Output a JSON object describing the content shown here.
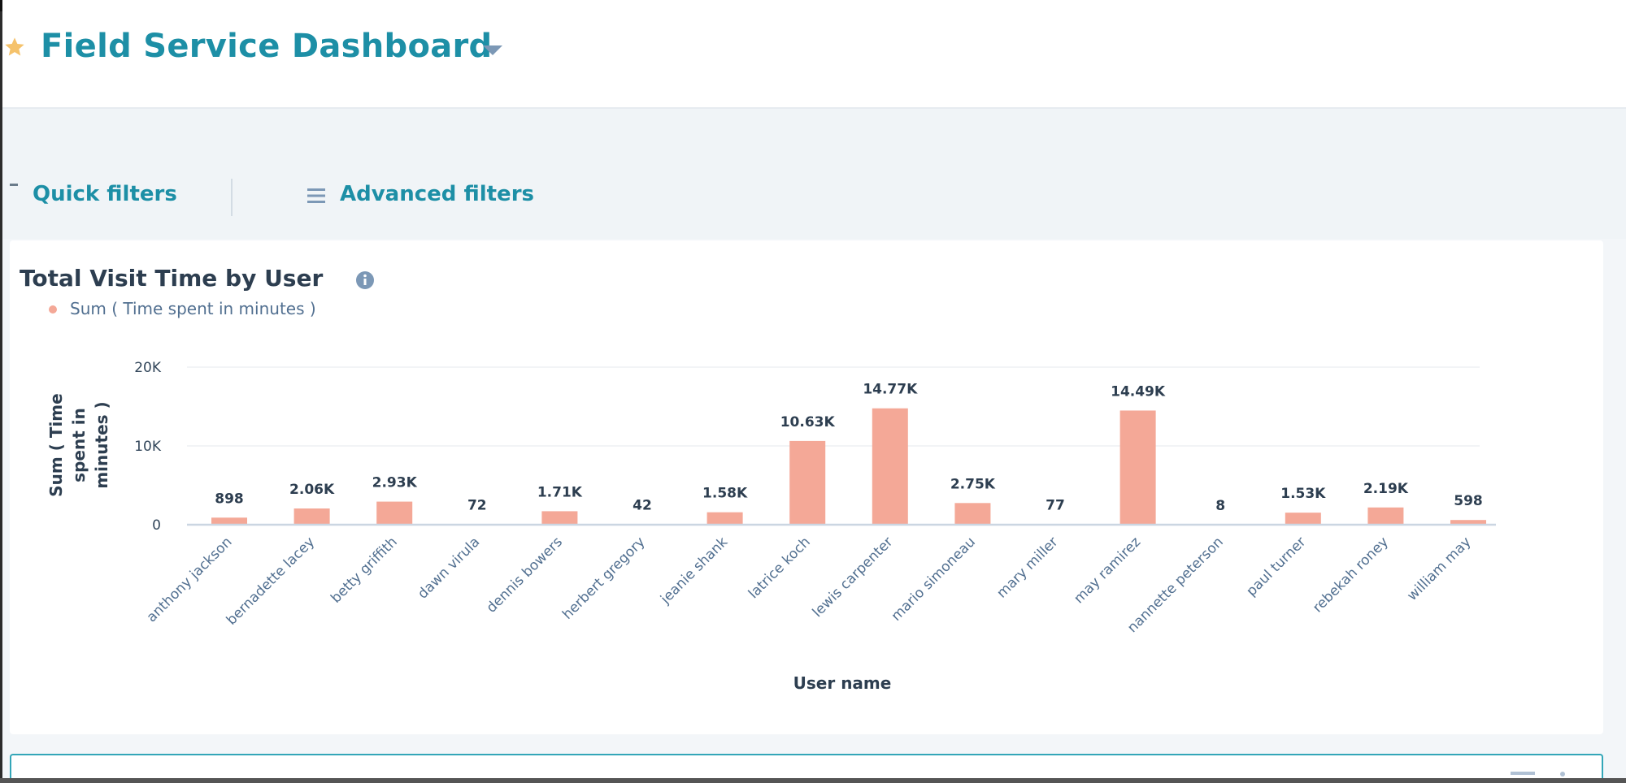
{
  "header": {
    "title": "Field Service Dashboard"
  },
  "filters": {
    "quick_label": "Quick filters",
    "advanced_label": "Advanced filters"
  },
  "report": {
    "title": "Total Visit Time by User",
    "legend_label": "Sum ( Time spent in minutes )"
  },
  "colors": {
    "accent": "#1d8fa6",
    "bar": "#f4a897",
    "star": "#f5c26b"
  },
  "icons": [
    "star-icon",
    "caret-down-icon",
    "filter-lines-icon",
    "info-icon"
  ],
  "chart_data": {
    "type": "bar",
    "categories": [
      "anthony jackson",
      "bernadette lacey",
      "betty griffith",
      "dawn virula",
      "dennis bowers",
      "herbert gregory",
      "jeanie shank",
      "latrice koch",
      "lewis carpenter",
      "mario simoneau",
      "mary miller",
      "may ramirez",
      "nannette peterson",
      "paul turner",
      "rebekah roney",
      "william may"
    ],
    "series": [
      {
        "name": "Sum ( Time spent in minutes )",
        "values": [
          898,
          2060,
          2930,
          72,
          1710,
          42,
          1580,
          10630,
          14770,
          2750,
          77,
          14490,
          8,
          1530,
          2190,
          598
        ]
      }
    ],
    "data_labels": [
      "898",
      "2.06K",
      "2.93K",
      "72",
      "1.71K",
      "42",
      "1.58K",
      "10.63K",
      "14.77K",
      "2.75K",
      "77",
      "14.49K",
      "8",
      "1.53K",
      "2.19K",
      "598"
    ],
    "y_ticks": [
      "0",
      "10K",
      "20K"
    ],
    "xlabel": "User name",
    "ylabel_lines": [
      "Sum ( Time",
      "spent in",
      "minutes )"
    ],
    "ylim": [
      0,
      20000
    ],
    "grid": true,
    "legend": "top-left"
  }
}
